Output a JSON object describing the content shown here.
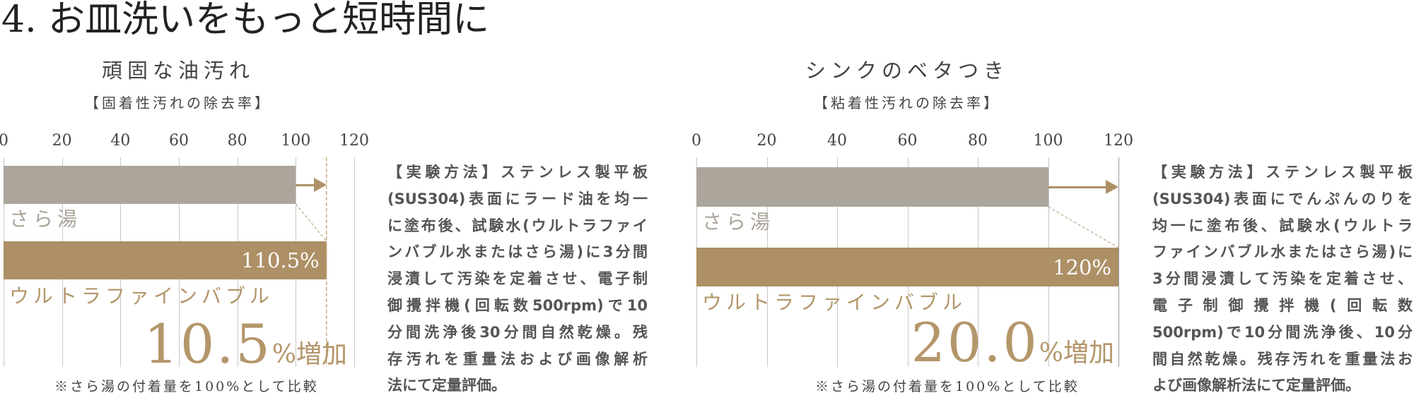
{
  "title": "4. お皿洗いをもっと短時間に",
  "colors": {
    "baseline": "#aba59b",
    "ufb": "#ad9065",
    "arrow": "#ad9065",
    "grid": "#c8c8c8"
  },
  "chart_data": [
    {
      "type": "bar",
      "orientation": "horizontal",
      "title": "頑固な油汚れ",
      "subtitle": "【固着性汚れの除去率】",
      "xlim": [
        0,
        120
      ],
      "ticks": [
        "0",
        "20",
        "40",
        "60",
        "80",
        "100",
        "120"
      ],
      "categories": [
        "さら湯",
        "ウルトラファインバブル"
      ],
      "values": [
        100,
        110.5
      ],
      "value_label": "110.5%",
      "increase_number": "10.5",
      "increase_unit": "%増加",
      "note": "※さら湯の付着量を100%として比較",
      "method": [
        "【実験方法】ステンレス製平板",
        "(SUS304)表面にラード油を均一",
        "に塗布後、試験水(ウルトラファイ",
        "ンバブル水またはさら湯)に3分間",
        "浸漬して汚染を定着させ、電子制",
        "御攪拌機(回転数500rpm)で10",
        "分間洗浄後30分間自然乾燥。残",
        "存汚れを重量法および画像解析",
        "法にて定量評価。"
      ]
    },
    {
      "type": "bar",
      "orientation": "horizontal",
      "title": "シンクのベタつき",
      "subtitle": "【粘着性汚れの除去率】",
      "xlim": [
        0,
        120
      ],
      "ticks": [
        "0",
        "20",
        "40",
        "60",
        "80",
        "100",
        "120"
      ],
      "categories": [
        "さら湯",
        "ウルトラファインバブル"
      ],
      "values": [
        100,
        120
      ],
      "value_label": "120%",
      "increase_number": "20.0",
      "increase_unit": "%増加",
      "note": "※さら湯の付着量を100%として比較",
      "method": [
        "【実験方法】ステンレス製平板",
        "(SUS304)表面にでんぷんのりを",
        "均一に塗布後、試験水(ウルトラ",
        "ファインバブル水またはさら湯)に",
        "3分間浸漬して汚染を定着させ、",
        "電子制御攪拌機(回転数",
        "500rpm)で10分間洗浄後、10分",
        "間自然乾燥。残存汚れを重量法お",
        "よび画像解析法にて定量評価。"
      ]
    }
  ]
}
